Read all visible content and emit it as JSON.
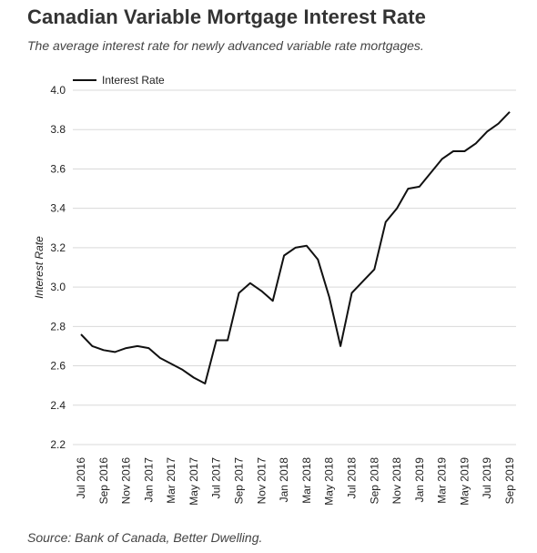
{
  "header": {
    "title": "Canadian Variable Mortgage Interest Rate",
    "subtitle": "The average interest rate for newly advanced variable rate mortgages."
  },
  "footer": {
    "source": "Source: Bank of Canada, Better Dwelling."
  },
  "chart_data": {
    "type": "line",
    "title": "Canadian Variable Mortgage Interest Rate",
    "subtitle": "The average interest rate for newly advanced variable rate mortgages.",
    "xlabel": "",
    "ylabel": "Interest Rate",
    "ylim": [
      2.2,
      4.0
    ],
    "yticks": [
      "4.0",
      "3.8",
      "3.6",
      "3.4",
      "3.2",
      "3.0",
      "2.8",
      "2.6",
      "2.4",
      "2.2"
    ],
    "x": [
      "2016-07",
      "2016-08",
      "2016-09",
      "2016-10",
      "2016-11",
      "2016-12",
      "2017-01",
      "2017-02",
      "2017-03",
      "2017-04",
      "2017-05",
      "2017-06",
      "2017-07",
      "2017-08",
      "2017-09",
      "2017-10",
      "2017-11",
      "2017-12",
      "2018-01",
      "2018-02",
      "2018-03",
      "2018-04",
      "2018-05",
      "2018-06",
      "2018-07",
      "2018-08",
      "2018-09",
      "2018-10",
      "2018-11",
      "2018-12",
      "2019-01",
      "2019-02",
      "2019-03",
      "2019-04",
      "2019-05",
      "2019-06",
      "2019-07",
      "2019-08",
      "2019-09"
    ],
    "xticks": [
      "Jul 2016",
      "Sep 2016",
      "Nov 2016",
      "Jan 2017",
      "Mar 2017",
      "May 2017",
      "Jul 2017",
      "Sep 2017",
      "Nov 2017",
      "Jan 2018",
      "Mar 2018",
      "May 2018",
      "Jul 2018",
      "Sep 2018",
      "Nov 2018",
      "Jan 2019",
      "Mar 2019",
      "May 2019",
      "Jul 2019",
      "Sep 2019"
    ],
    "series": [
      {
        "name": "Interest Rate",
        "color": "#111111",
        "values": [
          2.76,
          2.7,
          2.68,
          2.67,
          2.69,
          2.7,
          2.69,
          2.64,
          2.61,
          2.58,
          2.54,
          2.51,
          2.73,
          2.73,
          2.97,
          3.02,
          2.98,
          2.93,
          3.16,
          3.2,
          3.21,
          3.14,
          2.95,
          2.7,
          2.97,
          3.03,
          3.09,
          3.33,
          3.4,
          3.5,
          3.51,
          3.58,
          3.65,
          3.69,
          3.69,
          3.73,
          3.79,
          3.83,
          3.89
        ]
      }
    ],
    "grid": true,
    "legend": "top-left"
  }
}
